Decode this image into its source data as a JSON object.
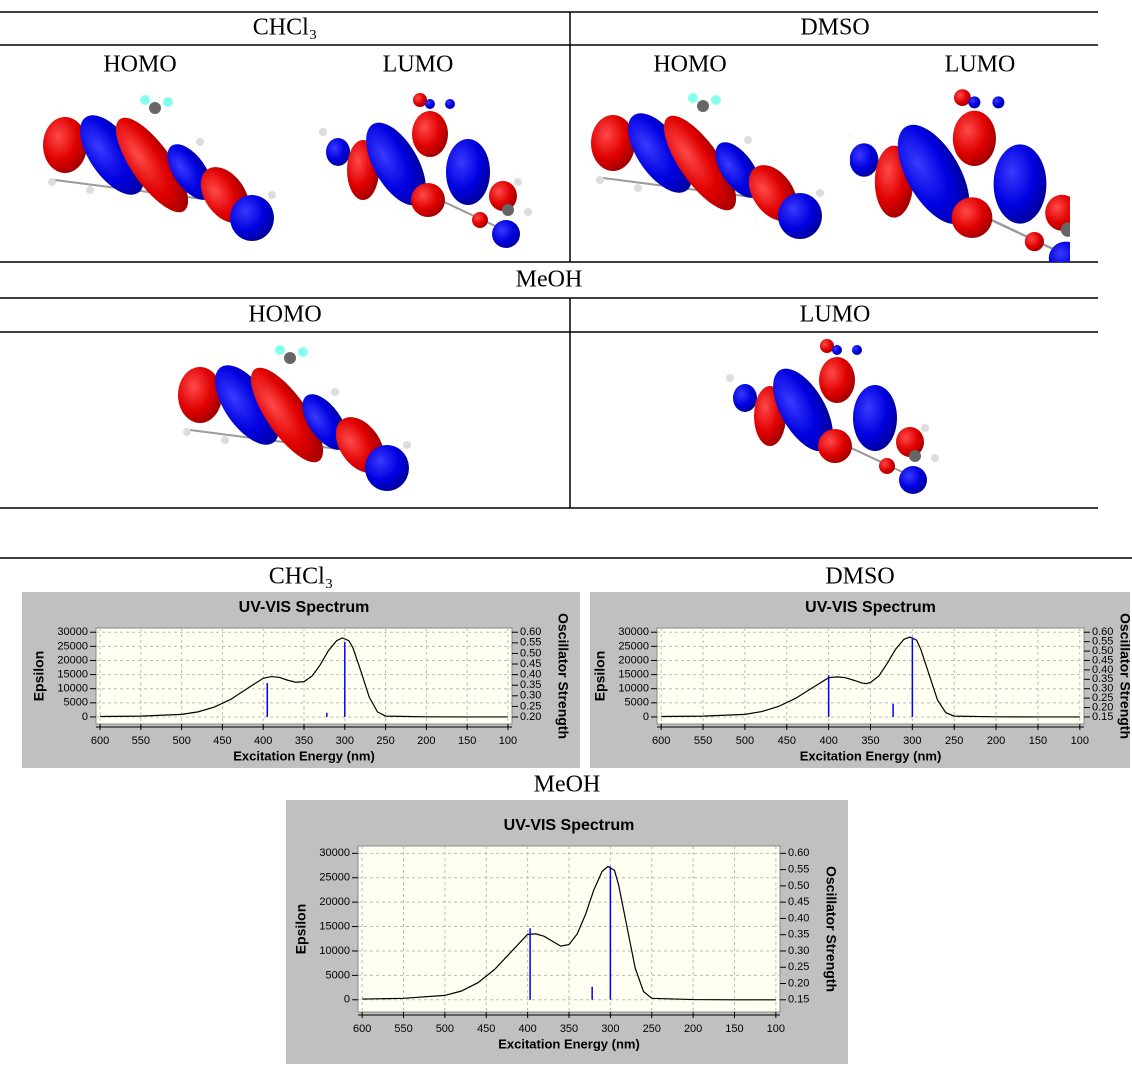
{
  "table": {
    "row1": {
      "headers": [
        "CHCl₃",
        "DMSO"
      ],
      "orbitals": [
        "HOMO",
        "LUMO",
        "HOMO",
        "LUMO"
      ]
    },
    "row2": {
      "header": "MeOH",
      "orbitals": [
        "HOMO",
        "LUMO"
      ]
    }
  },
  "chart_data": [
    {
      "type": "line",
      "caption": "CHCl₃",
      "title": "UV-VIS Spectrum",
      "x_label": "Excitation Energy (nm)",
      "y_label": "Epsilon",
      "y2_label": "Oscillator Strength",
      "xlim": [
        605,
        95
      ],
      "xticks": [
        600,
        550,
        500,
        450,
        400,
        350,
        300,
        250,
        200,
        150,
        100
      ],
      "ylim": [
        -2500,
        31500
      ],
      "yticks": [
        0,
        5000,
        10000,
        15000,
        20000,
        25000,
        30000
      ],
      "y2lim": [
        0.167,
        0.62
      ],
      "y2ticks": [
        {
          "value": 0.2,
          "label": "0.20"
        },
        0.25,
        {
          "value": 0.3,
          "label": "0.30"
        },
        0.35,
        {
          "value": 0.4,
          "label": "0.40"
        },
        0.45,
        {
          "value": 0.5,
          "label": "0.50"
        },
        0.55,
        {
          "value": 0.6,
          "label": "0.60"
        }
      ],
      "grid": true,
      "series": [
        {
          "color": "#000000",
          "x": [
            600,
            550,
            500,
            480,
            460,
            440,
            420,
            400,
            390,
            380,
            370,
            360,
            350,
            340,
            330,
            320,
            310,
            303,
            295,
            290,
            280,
            270,
            260,
            250,
            200,
            150,
            100
          ],
          "values": [
            150,
            300,
            900,
            1800,
            3500,
            6200,
            10000,
            13700,
            14300,
            14000,
            13000,
            12300,
            12500,
            14500,
            18500,
            23500,
            27000,
            28000,
            27000,
            24500,
            16000,
            7000,
            1800,
            300,
            50,
            0,
            0
          ]
        },
        {
          "color": "#0000ff",
          "axis": "y2",
          "x": [
            395,
            322,
            300
          ],
          "values": [
            0.36,
            0.22,
            0.553
          ]
        }
      ]
    },
    {
      "type": "line",
      "caption": "DMSO",
      "title": "UV-VIS Spectrum",
      "x_label": "Excitation Energy (nm)",
      "y_label": "Epsilon",
      "y2_label": "Oscillator Strength",
      "xlim": [
        605,
        95
      ],
      "xticks": [
        600,
        550,
        500,
        450,
        400,
        350,
        300,
        250,
        200,
        150,
        100
      ],
      "ylim": [
        -2500,
        31500
      ],
      "yticks": [
        0,
        5000,
        10000,
        15000,
        20000,
        25000,
        30000
      ],
      "y2lim": [
        0.1125,
        0.6225
      ],
      "y2ticks": [
        0.15,
        {
          "value": 0.2,
          "label": "0.20"
        },
        0.25,
        {
          "value": 0.3,
          "label": "0.30"
        },
        0.35,
        {
          "value": 0.4,
          "label": "0.40"
        },
        0.45,
        {
          "value": 0.5,
          "label": "0.50"
        },
        0.55,
        {
          "value": 0.6,
          "label": "0.60"
        }
      ],
      "grid": true,
      "series": [
        {
          "color": "#000000",
          "x": [
            600,
            550,
            500,
            480,
            460,
            440,
            420,
            400,
            390,
            380,
            370,
            360,
            355,
            350,
            340,
            330,
            320,
            310,
            303,
            295,
            290,
            280,
            270,
            260,
            250,
            200,
            150,
            100
          ],
          "values": [
            150,
            300,
            900,
            1900,
            3700,
            6500,
            10200,
            13900,
            14200,
            13900,
            13000,
            12000,
            11800,
            12200,
            14500,
            19000,
            24000,
            27500,
            28300,
            27200,
            24000,
            15000,
            6000,
            1500,
            300,
            50,
            0,
            0
          ]
        },
        {
          "color": "#0000ff",
          "axis": "y2",
          "x": [
            400,
            323,
            300
          ],
          "values": [
            0.372,
            0.22,
            0.573
          ]
        }
      ]
    },
    {
      "type": "line",
      "caption": "MeOH",
      "title": "UV-VIS Spectrum",
      "x_label": "Excitation Energy (nm)",
      "y_label": "Epsilon",
      "y2_label": "Oscillator Strength",
      "xlim": [
        605,
        95
      ],
      "xticks": [
        600,
        550,
        500,
        450,
        400,
        350,
        300,
        250,
        200,
        150,
        100
      ],
      "ylim": [
        -2500,
        31500
      ],
      "yticks": [
        0,
        5000,
        10000,
        15000,
        20000,
        25000,
        30000
      ],
      "y2lim": [
        0.1125,
        0.6225
      ],
      "y2ticks": [
        0.15,
        {
          "value": 0.2,
          "label": "0.20"
        },
        0.25,
        {
          "value": 0.3,
          "label": "0.30"
        },
        0.35,
        {
          "value": 0.4,
          "label": "0.40"
        },
        0.45,
        {
          "value": 0.5,
          "label": "0.50"
        },
        0.55,
        {
          "value": 0.6,
          "label": "0.60"
        }
      ],
      "grid": true,
      "series": [
        {
          "color": "#000000",
          "x": [
            600,
            550,
            500,
            480,
            460,
            440,
            420,
            400,
            390,
            380,
            370,
            360,
            350,
            340,
            330,
            320,
            310,
            303,
            295,
            290,
            280,
            270,
            260,
            250,
            200,
            150,
            100
          ],
          "values": [
            150,
            300,
            900,
            1800,
            3500,
            6200,
            9800,
            13400,
            13500,
            13000,
            12000,
            11000,
            11300,
            13500,
            17500,
            22500,
            26300,
            27300,
            26500,
            23500,
            15000,
            6500,
            1700,
            300,
            50,
            0,
            0
          ]
        },
        {
          "color": "#0000ff",
          "axis": "y2",
          "x": [
            397,
            322,
            300
          ],
          "values": [
            0.37,
            0.19,
            0.56
          ]
        }
      ]
    }
  ]
}
